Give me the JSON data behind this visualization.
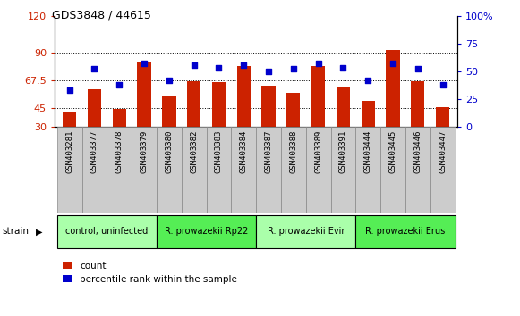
{
  "title": "GDS3848 / 44615",
  "samples": [
    "GSM403281",
    "GSM403377",
    "GSM403378",
    "GSM403379",
    "GSM403380",
    "GSM403382",
    "GSM403383",
    "GSM403384",
    "GSM403387",
    "GSM403388",
    "GSM403389",
    "GSM403391",
    "GSM403444",
    "GSM403445",
    "GSM403446",
    "GSM403447"
  ],
  "count_values": [
    42,
    60,
    44,
    82,
    55,
    67,
    66,
    79,
    63,
    57,
    79,
    62,
    51,
    92,
    67,
    46
  ],
  "percentile_values": [
    33,
    52,
    38,
    57,
    42,
    55,
    53,
    55,
    50,
    52,
    57,
    53,
    42,
    57,
    52,
    38
  ],
  "groups": [
    {
      "label": "control, uninfected",
      "start": 0,
      "end": 4,
      "color": "#aaffaa"
    },
    {
      "label": "R. prowazekii Rp22",
      "start": 4,
      "end": 8,
      "color": "#55ee55"
    },
    {
      "label": "R. prowazekii Evir",
      "start": 8,
      "end": 12,
      "color": "#aaffaa"
    },
    {
      "label": "R. prowazekii Erus",
      "start": 12,
      "end": 16,
      "color": "#55ee55"
    }
  ],
  "ylim_left": [
    30,
    120
  ],
  "ylim_right": [
    0,
    100
  ],
  "yticks_left": [
    30,
    45,
    67.5,
    90,
    120
  ],
  "yticks_right": [
    0,
    25,
    50,
    75,
    100
  ],
  "bar_color": "#cc2200",
  "dot_color": "#0000cc",
  "bg_color": "#cccccc",
  "plot_bg_color": "#ffffff",
  "legend_count": "count",
  "legend_percentile": "percentile rank within the sample"
}
